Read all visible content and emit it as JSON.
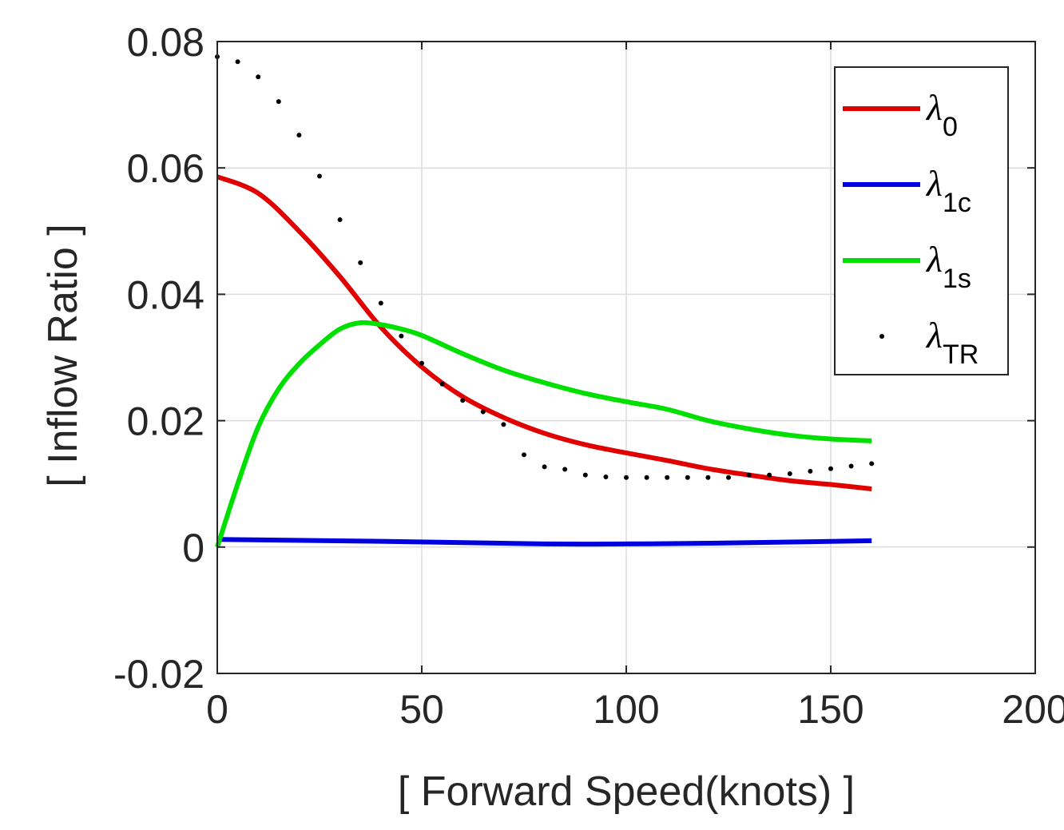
{
  "chart_data": {
    "type": "line",
    "title": "",
    "xlabel": "[ Forward Speed(knots) ]",
    "ylabel": "[ Inflow Ratio ]",
    "xlim": [
      0,
      200
    ],
    "ylim": [
      -0.02,
      0.08
    ],
    "xticks": [
      0,
      50,
      100,
      150,
      200
    ],
    "xtick_labels": [
      "0",
      "50",
      "100",
      "150",
      "200"
    ],
    "yticks": [
      -0.02,
      0,
      0.02,
      0.04,
      0.06,
      0.08
    ],
    "ytick_labels": [
      "-0.02",
      "0",
      "0.02",
      "0.04",
      "0.06",
      "0.08"
    ],
    "grid": true,
    "legend_position": "top-right",
    "series": [
      {
        "name": "λ0",
        "symbol": "λ",
        "subscript": "0",
        "color": "#e00000",
        "style": "solid",
        "x": [
          0,
          10,
          20,
          30,
          40,
          50,
          60,
          70,
          80,
          90,
          100,
          110,
          120,
          130,
          140,
          150,
          160
        ],
        "y": [
          0.0586,
          0.056,
          0.05,
          0.0428,
          0.0348,
          0.0285,
          0.0238,
          0.0205,
          0.018,
          0.0162,
          0.0149,
          0.0137,
          0.0124,
          0.0114,
          0.0105,
          0.0099,
          0.0092
        ]
      },
      {
        "name": "λ1c",
        "symbol": "λ",
        "subscript": "1c",
        "color": "#0000e0",
        "style": "solid",
        "x": [
          0,
          40,
          80,
          100,
          120,
          160
        ],
        "y": [
          0.0012,
          0.0009,
          0.0005,
          0.0005,
          0.0006,
          0.001
        ]
      },
      {
        "name": "λ1s",
        "symbol": "λ",
        "subscript": "1s",
        "color": "#00e000",
        "style": "solid",
        "x": [
          0,
          5,
          10,
          15,
          20,
          25,
          30,
          35,
          40,
          45,
          50,
          60,
          70,
          80,
          90,
          100,
          110,
          120,
          130,
          140,
          150,
          160
        ],
        "y": [
          0,
          0.01,
          0.019,
          0.025,
          0.029,
          0.032,
          0.0345,
          0.0355,
          0.0352,
          0.0345,
          0.0335,
          0.0306,
          0.028,
          0.026,
          0.0243,
          0.023,
          0.0218,
          0.02,
          0.0187,
          0.0177,
          0.0171,
          0.0168
        ]
      },
      {
        "name": "λTR",
        "symbol": "λ",
        "subscript": "TR",
        "color": "#000000",
        "style": "dots",
        "x": [
          0,
          5,
          10,
          15,
          20,
          25,
          30,
          35,
          40,
          45,
          50,
          55,
          60,
          65,
          70,
          75,
          80,
          85,
          90,
          95,
          100,
          105,
          110,
          115,
          120,
          125,
          130,
          135,
          140,
          145,
          150,
          155,
          160
        ],
        "y": [
          0.0776,
          0.0768,
          0.0744,
          0.0705,
          0.0652,
          0.0587,
          0.0518,
          0.045,
          0.0386,
          0.0334,
          0.0291,
          0.0258,
          0.0232,
          0.0214,
          0.0194,
          0.0146,
          0.0127,
          0.0123,
          0.0114,
          0.0111,
          0.011,
          0.011,
          0.011,
          0.011,
          0.011,
          0.011,
          0.0114,
          0.0114,
          0.0116,
          0.012,
          0.0124,
          0.0128,
          0.0132
        ]
      }
    ]
  }
}
